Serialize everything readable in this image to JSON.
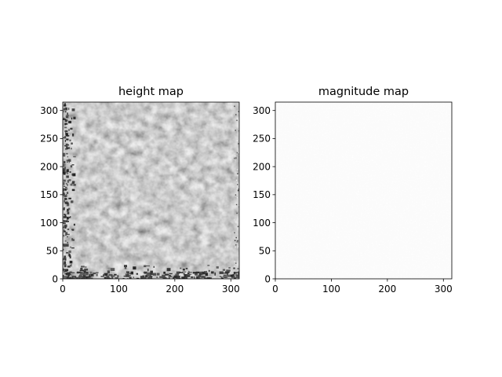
{
  "chart_data": [
    {
      "type": "heatmap",
      "title": "height map",
      "xlabel": "",
      "ylabel": "",
      "xlim": [
        0,
        315
      ],
      "ylim": [
        0,
        315
      ],
      "xticks": [
        0,
        100,
        200,
        300
      ],
      "yticks": [
        0,
        50,
        100,
        150,
        200,
        250,
        300
      ],
      "colormap": "gray",
      "base_color": "#a8a8a8"
    },
    {
      "type": "heatmap",
      "title": "magnitude map",
      "xlabel": "",
      "ylabel": "",
      "xlim": [
        0,
        315
      ],
      "ylim": [
        0,
        315
      ],
      "xticks": [
        0,
        100,
        200,
        300
      ],
      "yticks": [
        0,
        50,
        100,
        150,
        200,
        250,
        300
      ],
      "colormap": "gray_r",
      "base_color": "#f6f6f6"
    }
  ]
}
